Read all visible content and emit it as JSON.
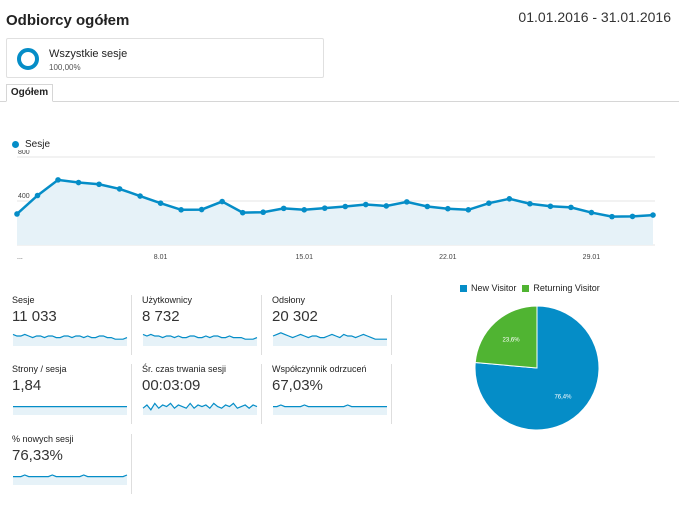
{
  "header": {
    "title": "Odbiorcy ogółem",
    "date_range": "01.01.2016 - 31.01.2016"
  },
  "segment": {
    "name": "Wszystkie sesje",
    "percent": "100,00%",
    "color": "#058dc7"
  },
  "tabs": [
    {
      "label": "Ogółem"
    }
  ],
  "colors": {
    "primary": "#058dc7",
    "returning": "#50b432",
    "fill": "#e6f2f8"
  },
  "chart_data": [
    {
      "type": "area",
      "legend": "top-left",
      "series": [
        {
          "name": "Sesje",
          "values": [
            282,
            450,
            592,
            568,
            552,
            510,
            445,
            380,
            320,
            322,
            395,
            294,
            298,
            333,
            320,
            335,
            350,
            368,
            355,
            392,
            350,
            330,
            320,
            380,
            420,
            375,
            352,
            342,
            295,
            258,
            260,
            272
          ]
        }
      ],
      "x_ticks": [
        "...",
        "8.01",
        "15.01",
        "22.01",
        "29.01"
      ],
      "y_ticks": [
        "800",
        "400"
      ],
      "ylim": [
        0,
        800
      ],
      "grid": true
    },
    {
      "type": "pie",
      "legend": "top",
      "labels": [
        "New Visitor",
        "Returning Visitor"
      ],
      "values": [
        76.4,
        23.6
      ],
      "data_labels": [
        "76,4%",
        "23,6%"
      ],
      "colors": [
        "#058dc7",
        "#50b432"
      ]
    }
  ],
  "metrics": [
    {
      "label": "Sesje",
      "value": "11 033",
      "spark": [
        6,
        5,
        5,
        6,
        5,
        4,
        5,
        5,
        4,
        5,
        5,
        4,
        4,
        5,
        5,
        4,
        5,
        5,
        4,
        5,
        4,
        4,
        5,
        5,
        4,
        4,
        3,
        3,
        3,
        4
      ]
    },
    {
      "label": "Użytkownicy",
      "value": "8 732",
      "spark": [
        6,
        5,
        6,
        5,
        5,
        4,
        5,
        5,
        4,
        5,
        4,
        4,
        5,
        5,
        4,
        4,
        5,
        4,
        5,
        5,
        4,
        4,
        5,
        4,
        4,
        4,
        3,
        3,
        3,
        4
      ]
    },
    {
      "label": "Odsłony",
      "value": "20 302",
      "spark": [
        5,
        6,
        7,
        6,
        5,
        4,
        5,
        6,
        5,
        4,
        5,
        5,
        4,
        4,
        5,
        6,
        5,
        4,
        6,
        5,
        5,
        4,
        5,
        6,
        5,
        4,
        3,
        3,
        3,
        3
      ]
    },
    {
      "label": "Strony / sesja",
      "value": "1,84",
      "spark": [
        4,
        4,
        4,
        4,
        4,
        4,
        4,
        4,
        4,
        4,
        4,
        4,
        4,
        4,
        4,
        4,
        4,
        4,
        4,
        4,
        4,
        4,
        4,
        4,
        4,
        4,
        4,
        4,
        4,
        4
      ]
    },
    {
      "label": "Śr. czas trwania sesji",
      "value": "00:03:09",
      "spark": [
        3,
        5,
        2,
        6,
        3,
        5,
        4,
        6,
        3,
        5,
        4,
        3,
        6,
        3,
        5,
        4,
        5,
        3,
        6,
        4,
        3,
        5,
        4,
        6,
        3,
        4,
        5,
        3,
        5,
        4
      ]
    },
    {
      "label": "Współczynnik odrzuceń",
      "value": "67,03%",
      "spark": [
        4,
        4,
        5,
        4,
        4,
        4,
        4,
        4,
        5,
        4,
        4,
        4,
        4,
        4,
        4,
        4,
        4,
        4,
        4,
        5,
        4,
        4,
        4,
        4,
        4,
        4,
        4,
        4,
        4,
        4
      ]
    },
    {
      "label": "% nowych sesji",
      "value": "76,33%",
      "spark": [
        4,
        4,
        4,
        5,
        4,
        4,
        4,
        4,
        4,
        4,
        5,
        4,
        4,
        4,
        4,
        4,
        4,
        4,
        5,
        4,
        4,
        4,
        4,
        4,
        4,
        4,
        4,
        4,
        4,
        5
      ]
    }
  ]
}
